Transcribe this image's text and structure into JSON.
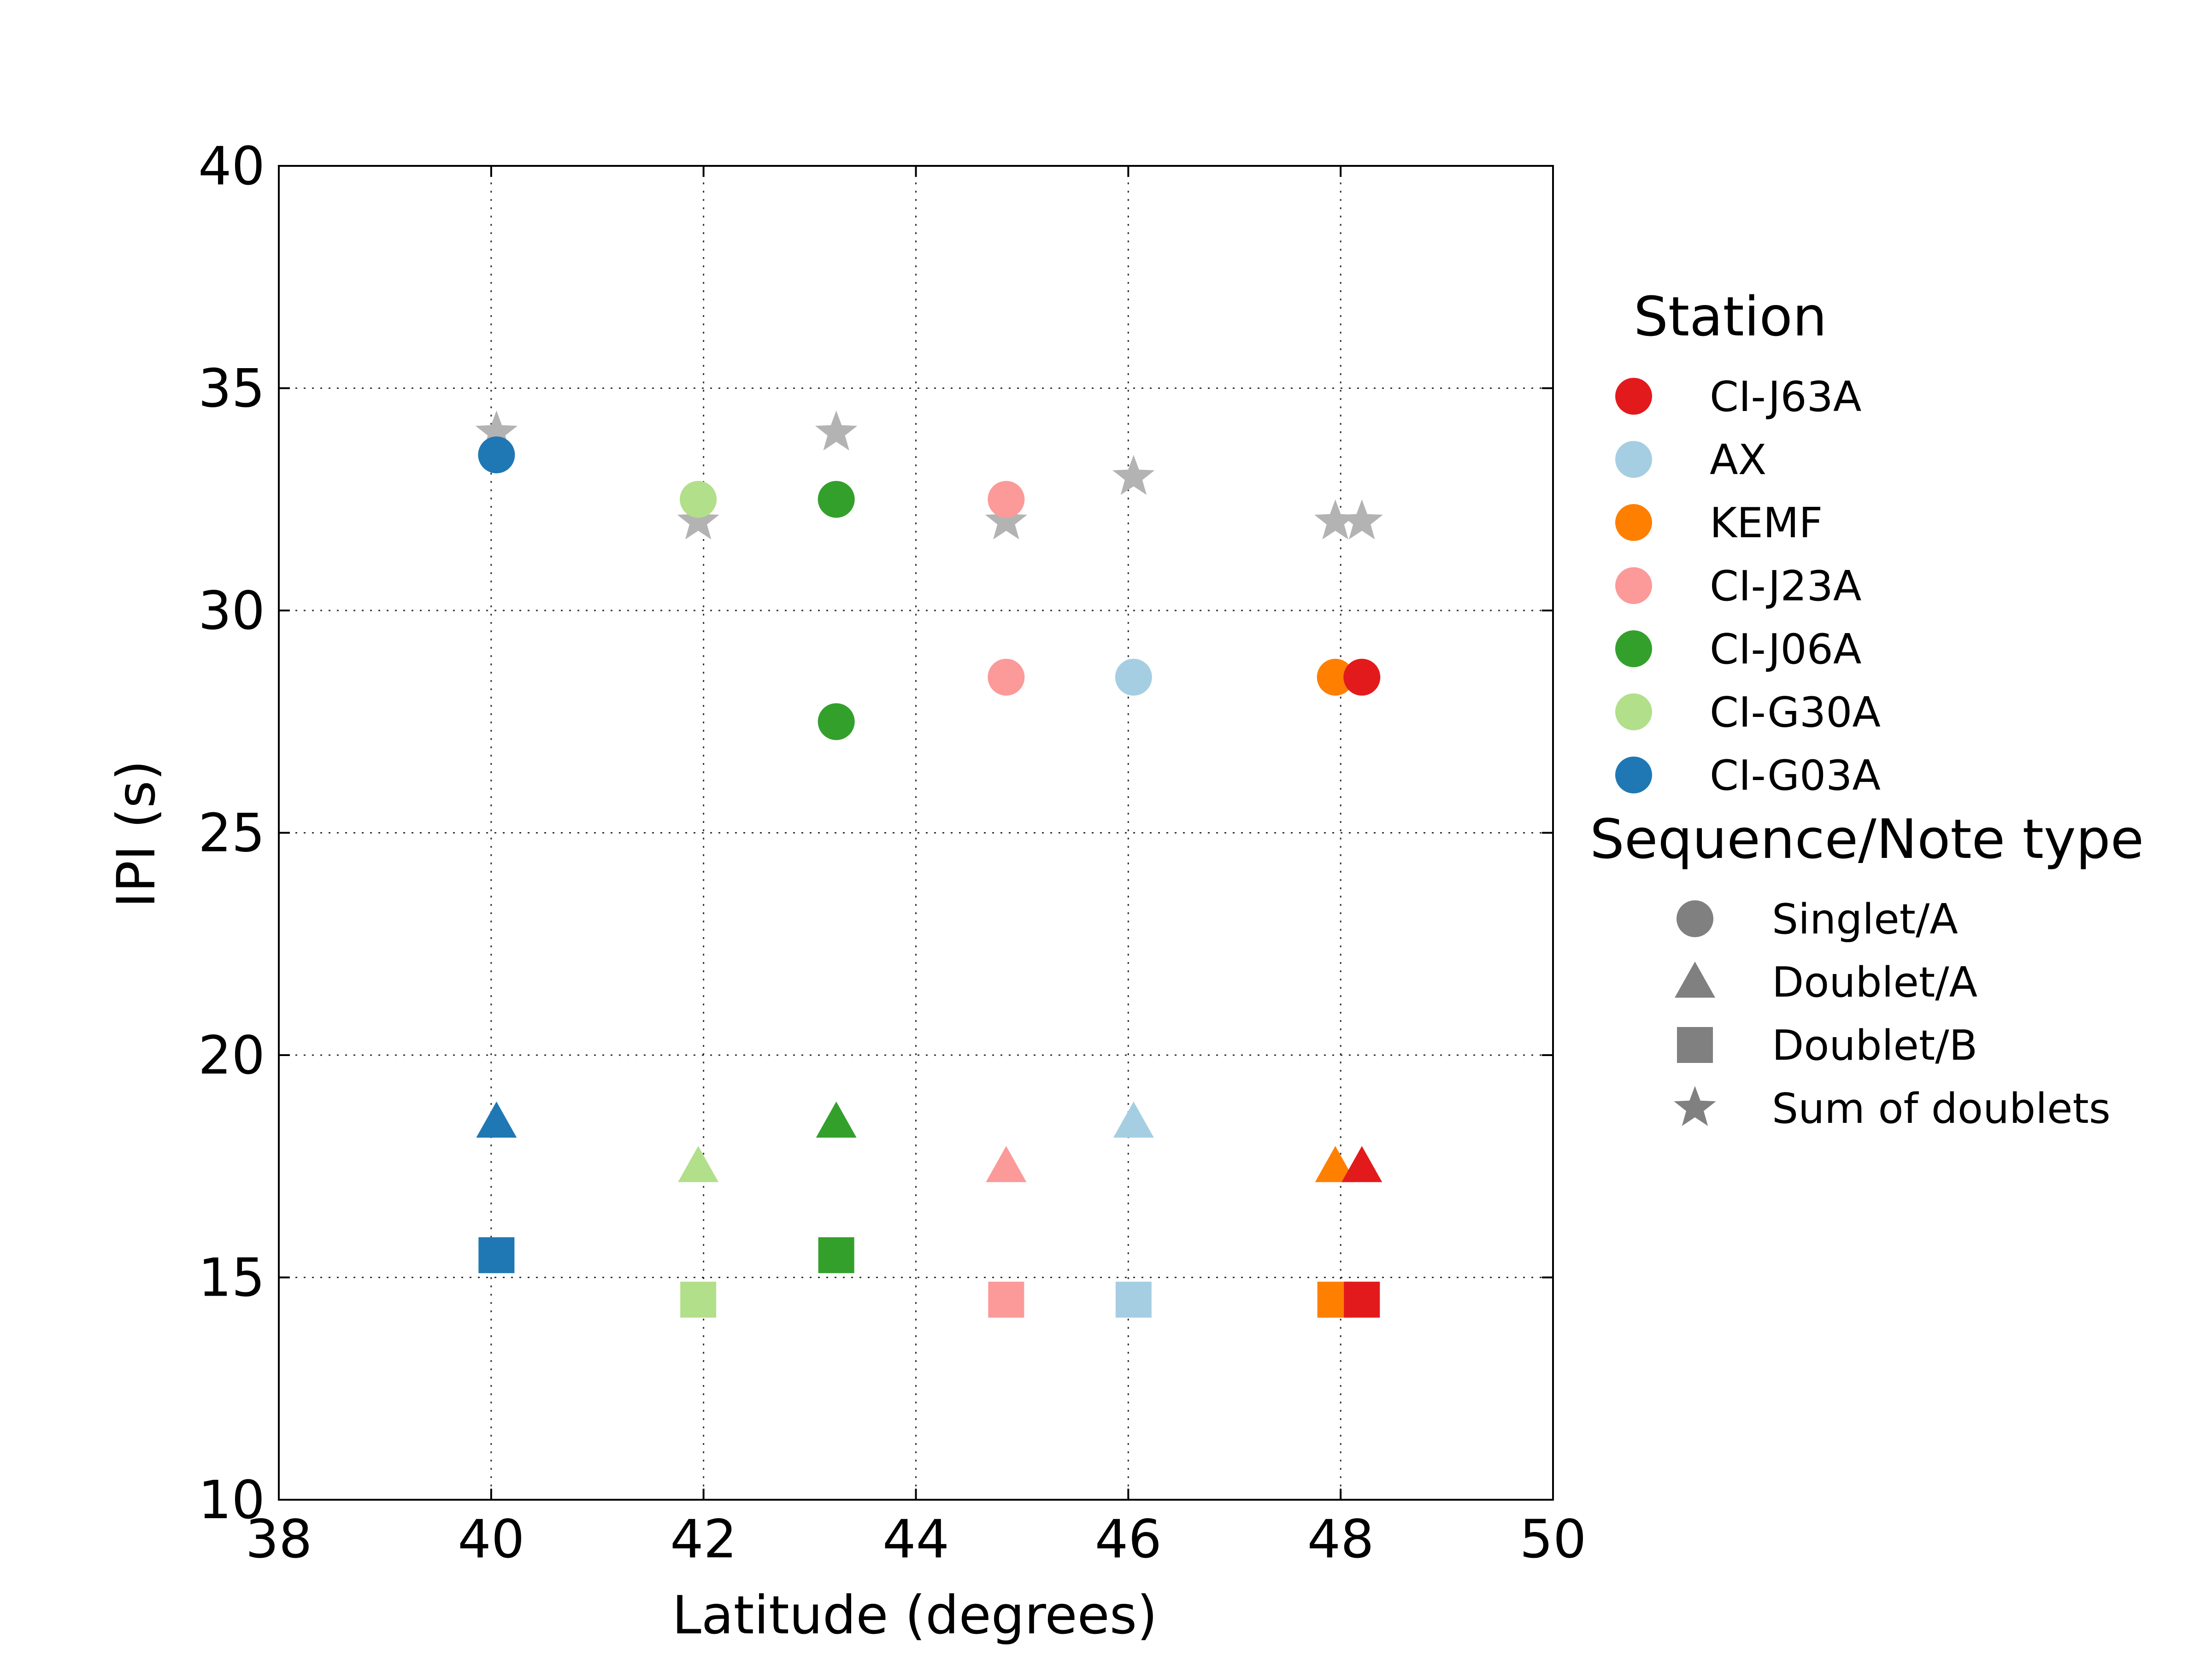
{
  "chart_data": {
    "type": "scatter",
    "title": "",
    "xlabel": "Latitude (degrees)",
    "ylabel": "IPI (s)",
    "xlim": [
      38,
      50
    ],
    "ylim": [
      10,
      40
    ],
    "xticks": [
      38,
      40,
      42,
      44,
      46,
      48,
      50
    ],
    "yticks": [
      10,
      15,
      20,
      25,
      30,
      35,
      40
    ],
    "grid": true,
    "legend_position": "right, outside plot",
    "station_legend": {
      "title": "Station",
      "entries": [
        {
          "name": "CI-J63A",
          "color": "#e31a1c"
        },
        {
          "name": "AX",
          "color": "#a6cee3"
        },
        {
          "name": "KEMF",
          "color": "#ff7f00"
        },
        {
          "name": "CI-J23A",
          "color": "#fb9a99"
        },
        {
          "name": "CI-J06A",
          "color": "#33a02c"
        },
        {
          "name": "CI-G30A",
          "color": "#b2df8a"
        },
        {
          "name": "CI-G03A",
          "color": "#1f78b4"
        }
      ]
    },
    "type_legend": {
      "title": "Sequence/Note type",
      "entries": [
        {
          "name": "Singlet/A",
          "marker": "circle"
        },
        {
          "name": "Doublet/A",
          "marker": "triangle"
        },
        {
          "name": "Doublet/B",
          "marker": "square"
        },
        {
          "name": "Sum of doublets",
          "marker": "star"
        }
      ]
    },
    "marker_color_type_legend": "#808080",
    "star_color": "#b3b3b3",
    "points": [
      {
        "station": "CI-G03A",
        "marker": "star",
        "x": 40.05,
        "y": 34.0
      },
      {
        "station": "CI-G03A",
        "marker": "circle",
        "x": 40.05,
        "y": 33.5
      },
      {
        "station": "CI-G03A",
        "marker": "triangle",
        "x": 40.05,
        "y": 18.5
      },
      {
        "station": "CI-G03A",
        "marker": "square",
        "x": 40.05,
        "y": 15.5
      },
      {
        "station": "CI-G30A",
        "marker": "circle",
        "x": 41.95,
        "y": 32.5
      },
      {
        "station": "CI-G30A",
        "marker": "star",
        "x": 41.95,
        "y": 32.0
      },
      {
        "station": "CI-G30A",
        "marker": "triangle",
        "x": 41.95,
        "y": 17.5
      },
      {
        "station": "CI-G30A",
        "marker": "square",
        "x": 41.95,
        "y": 14.5
      },
      {
        "station": "CI-J06A",
        "marker": "star",
        "x": 43.25,
        "y": 34.0
      },
      {
        "station": "CI-J06A",
        "marker": "circle",
        "x": 43.25,
        "y": 32.5
      },
      {
        "station": "CI-J06A",
        "marker": "circle",
        "x": 43.25,
        "y": 27.5
      },
      {
        "station": "CI-J06A",
        "marker": "triangle",
        "x": 43.25,
        "y": 18.5
      },
      {
        "station": "CI-J06A",
        "marker": "square",
        "x": 43.25,
        "y": 15.5
      },
      {
        "station": "CI-J23A",
        "marker": "circle",
        "x": 44.85,
        "y": 32.5
      },
      {
        "station": "CI-J23A",
        "marker": "star",
        "x": 44.85,
        "y": 32.0
      },
      {
        "station": "CI-J23A",
        "marker": "circle",
        "x": 44.85,
        "y": 28.5
      },
      {
        "station": "CI-J23A",
        "marker": "triangle",
        "x": 44.85,
        "y": 17.5
      },
      {
        "station": "CI-J23A",
        "marker": "square",
        "x": 44.85,
        "y": 14.5
      },
      {
        "station": "AX",
        "marker": "star",
        "x": 46.05,
        "y": 33.0
      },
      {
        "station": "AX",
        "marker": "circle",
        "x": 46.05,
        "y": 28.5
      },
      {
        "station": "AX",
        "marker": "triangle",
        "x": 46.05,
        "y": 18.5
      },
      {
        "station": "AX",
        "marker": "square",
        "x": 46.05,
        "y": 14.5
      },
      {
        "station": "KEMF",
        "marker": "star",
        "x": 47.95,
        "y": 32.0
      },
      {
        "station": "KEMF",
        "marker": "circle",
        "x": 47.95,
        "y": 28.5
      },
      {
        "station": "KEMF",
        "marker": "triangle",
        "x": 47.95,
        "y": 17.5
      },
      {
        "station": "KEMF",
        "marker": "square",
        "x": 47.95,
        "y": 14.5
      },
      {
        "station": "CI-J63A",
        "marker": "star",
        "x": 48.2,
        "y": 32.0
      },
      {
        "station": "CI-J63A",
        "marker": "circle",
        "x": 48.2,
        "y": 28.5
      },
      {
        "station": "CI-J63A",
        "marker": "triangle",
        "x": 48.2,
        "y": 17.5
      },
      {
        "station": "CI-J63A",
        "marker": "square",
        "x": 48.2,
        "y": 14.5
      }
    ]
  }
}
